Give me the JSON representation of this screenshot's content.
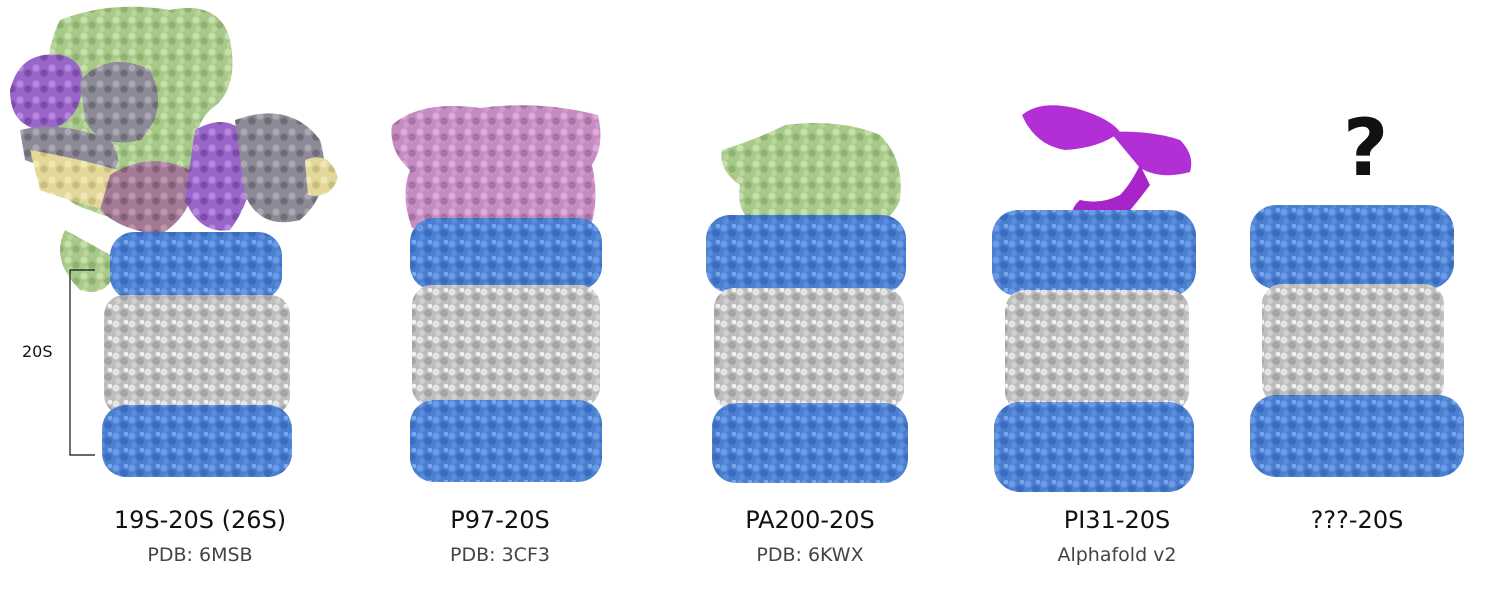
{
  "colors": {
    "alpha_ring": "#4a7fd0",
    "beta_core": "#bdbdbd",
    "rp19s_green": "#a8cf8a",
    "rp19s_violet": "#9a65c8",
    "rp19s_gray": "#8c8a96",
    "rp19s_yellow": "#e3d79a",
    "rp19s_mauve": "#a27a95",
    "p97_pink": "#c48cc0",
    "pa200_green": "#a9c98a",
    "pi31_magenta": "#b22fd6"
  },
  "complexes": [
    {
      "name": "19S-20S (26S)",
      "source": "PDB: 6MSB",
      "regulator": "19S"
    },
    {
      "name": "P97-20S",
      "source": "PDB: 3CF3",
      "regulator": "P97"
    },
    {
      "name": "PA200-20S",
      "source": "PDB: 6KWX",
      "regulator": "PA200"
    },
    {
      "name": "PI31-20S",
      "source": "Alphafold v2",
      "regulator": "PI31"
    },
    {
      "name": "???-20S",
      "source": "",
      "regulator": "unknown"
    }
  ],
  "unknown_symbol": "?",
  "bracket_label": "20S"
}
